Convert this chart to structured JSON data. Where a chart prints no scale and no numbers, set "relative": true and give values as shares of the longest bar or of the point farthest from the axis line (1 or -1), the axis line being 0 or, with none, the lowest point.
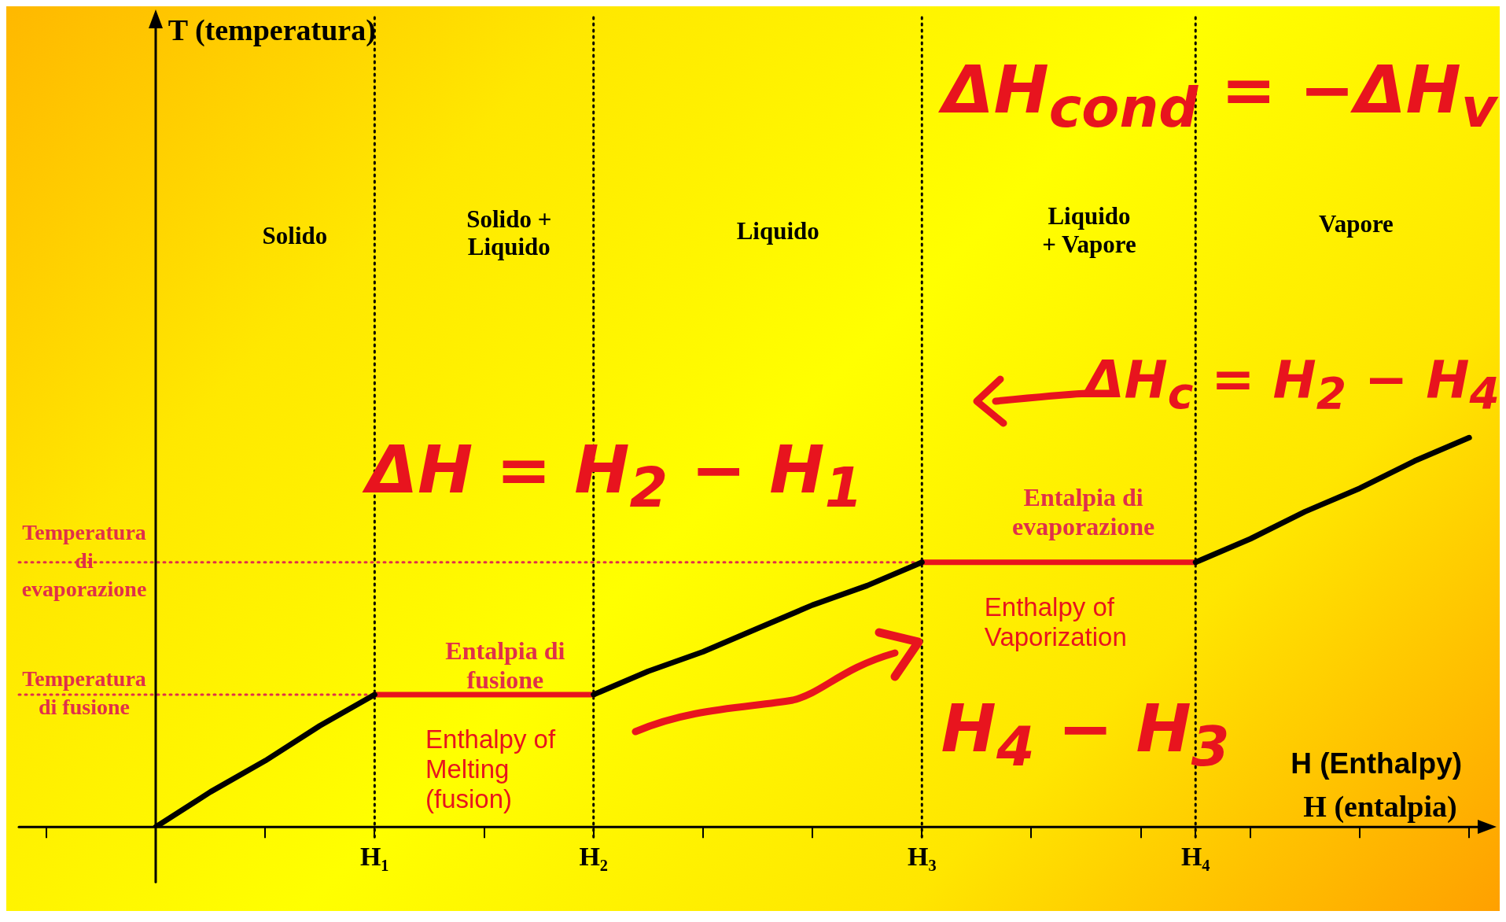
{
  "chart_data": {
    "type": "line",
    "relative": true,
    "xlabel": "H (entalpia)",
    "categories": [
      null,
      null,
      null,
      null,
      null,
      null,
      "H₁",
      null,
      null,
      null,
      "H₂",
      null,
      null,
      null,
      null,
      null,
      "H₃",
      null,
      null,
      null,
      null,
      "H₄",
      null,
      null,
      null,
      null,
      null
    ],
    "series": [
      {
        "color": "#000000",
        "values": [
          null,
          null,
          0,
          0.09,
          0.17,
          0.26,
          0.34,
          null,
          null,
          null,
          0.34,
          0.4,
          0.45,
          0.51,
          0.57,
          0.62,
          0.68,
          null,
          null,
          null,
          null,
          0.68,
          0.74,
          0.81,
          0.87,
          0.94,
          1
        ]
      },
      {
        "color": "#e8141e",
        "values": [
          null,
          null,
          null,
          null,
          null,
          null,
          0.34,
          0.34,
          0.34,
          0.34,
          0.34,
          null,
          null,
          null,
          null,
          null,
          0.68,
          0.68,
          0.68,
          0.68,
          0.68,
          0.68,
          null,
          null,
          null,
          null,
          null
        ]
      }
    ],
    "ref_lines": [
      {
        "axis": "x",
        "value": "H₁",
        "color": "#000000",
        "line_style": "dotted"
      },
      {
        "axis": "x",
        "value": "H₂",
        "color": "#000000",
        "line_style": "dotted"
      },
      {
        "axis": "x",
        "value": "H₃",
        "color": "#000000",
        "line_style": "dotted"
      },
      {
        "axis": "x",
        "value": "H₄",
        "color": "#000000",
        "line_style": "dotted"
      },
      {
        "axis": "y",
        "value": 0.68,
        "label": "Temperatura di evaporazione",
        "color": "#e0304a",
        "line_style": "dotted"
      },
      {
        "axis": "y",
        "value": 0.34,
        "label": "Temperatura di fusione",
        "color": "#e0304a",
        "line_style": "dotted"
      }
    ],
    "annotations": [
      "Solido",
      "Solido + Liquido",
      "Liquido",
      "Liquido + Vapore",
      "Vapore",
      "Entalpia di fusione",
      "Enthalpy of Melting (fusion)",
      "Entalpia di evaporazione",
      "Enthalpy of Vaporization",
      "H (Enthalpy)",
      "ΔH$_{cond}$ = −ΔH$_{v}$",
      "ΔH = H$_{2}$ − H$_{1}$",
      "ΔH$_{c}$ = H$_{2}$ − H$_{4}$",
      "H$_{4}$ − H$_{3}$",
      "T (temperatura)"
    ],
    "grid": false,
    "legend": false,
    "marker": "none",
    "line_style": "solid"
  }
}
